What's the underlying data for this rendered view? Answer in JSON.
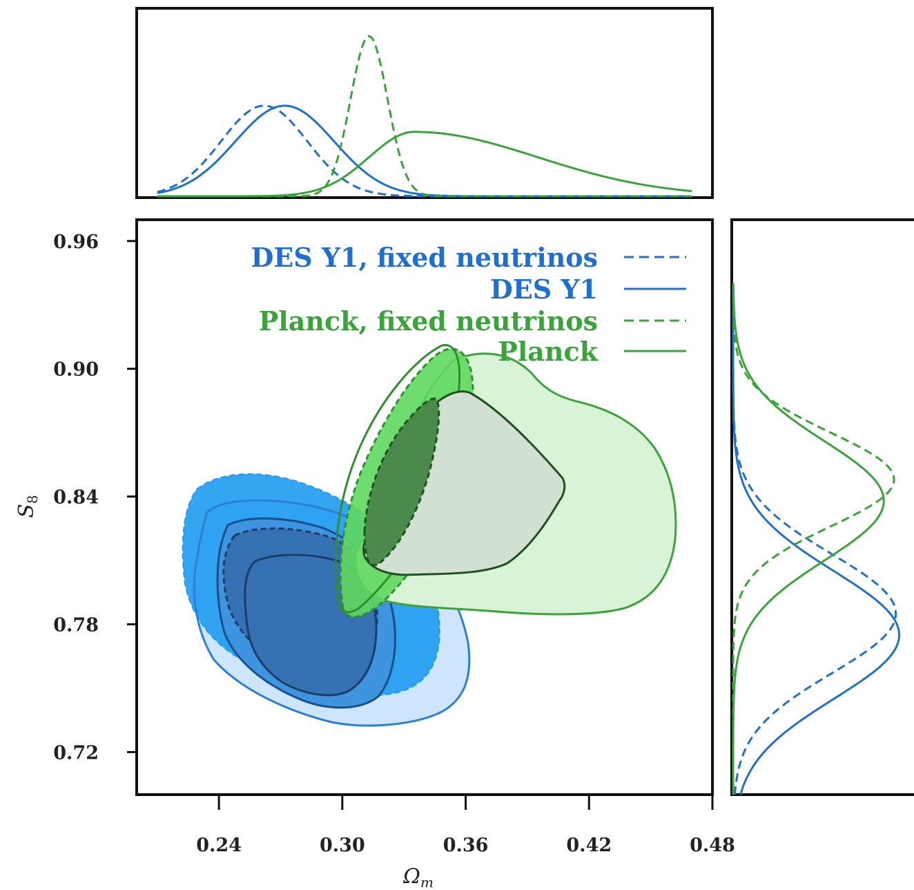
{
  "chart_data": {
    "type": "contour",
    "xlabel": "Ωm",
    "ylabel": "S8",
    "xlim": [
      0.2,
      0.48
    ],
    "ylim": [
      0.7,
      0.97
    ],
    "xticks": [
      "0.24",
      "0.30",
      "0.36",
      "0.42",
      "0.48"
    ],
    "yticks": [
      "0.96",
      "0.90",
      "0.84",
      "0.78",
      "0.72"
    ],
    "legend_position": "top-right",
    "colors": {
      "blue": "#1f6fd0",
      "blue_outer": "#1e9bf0",
      "blue_light": "#cde6fb",
      "blue_inner": "#3671b4",
      "green": "#39a439",
      "green_outer": "#5fd85f",
      "green_light": "#d8f3d6",
      "green_inner": "#4c8a4c",
      "green_grey": "#d2e0d2"
    },
    "series": [
      {
        "name": "DES Y1, fixed neutrinos",
        "color": "#1f6fd0",
        "linestyle": "dashed",
        "contour_68": {
          "cx": 0.266,
          "cy": 0.787,
          "a": 0.036,
          "b": 0.024,
          "angle_deg": -30
        },
        "contour_95": {
          "cx": 0.27,
          "cy": 0.79,
          "a": 0.062,
          "b": 0.046,
          "angle_deg": -30
        },
        "marginal_x_peak": 0.262,
        "marginal_x_sigma": 0.021,
        "marginal_y_peak": 0.785,
        "marginal_y_sigma": 0.028
      },
      {
        "name": "DES Y1",
        "color": "#1f6fd0",
        "linestyle": "solid",
        "contour_68": {
          "cx": 0.278,
          "cy": 0.777,
          "a": 0.04,
          "b": 0.023,
          "angle_deg": -30
        },
        "contour_95": {
          "cx": 0.285,
          "cy": 0.775,
          "a": 0.074,
          "b": 0.044,
          "angle_deg": -30
        },
        "marginal_x_peak": 0.272,
        "marginal_x_sigma": 0.024,
        "marginal_y_peak": 0.775,
        "marginal_y_sigma": 0.03
      },
      {
        "name": "Planck, fixed neutrinos",
        "color": "#39a439",
        "linestyle": "dashed",
        "contour_68": {
          "cx": 0.315,
          "cy": 0.843,
          "a": 0.042,
          "b": 0.013,
          "angle_deg": 62
        },
        "contour_95": {
          "cx": 0.318,
          "cy": 0.845,
          "a": 0.075,
          "b": 0.022,
          "angle_deg": 62
        },
        "marginal_x_peak": 0.313,
        "marginal_x_sigma": 0.009,
        "marginal_y_peak": 0.848,
        "marginal_y_sigma": 0.022
      },
      {
        "name": "Planck",
        "color": "#39a439",
        "linestyle": "solid",
        "marginal_x_peak": 0.335,
        "marginal_x_sigma": 0.022,
        "marginal_x_tail": 0.06,
        "marginal_y_peak": 0.838,
        "marginal_y_sigma": 0.028
      }
    ]
  }
}
